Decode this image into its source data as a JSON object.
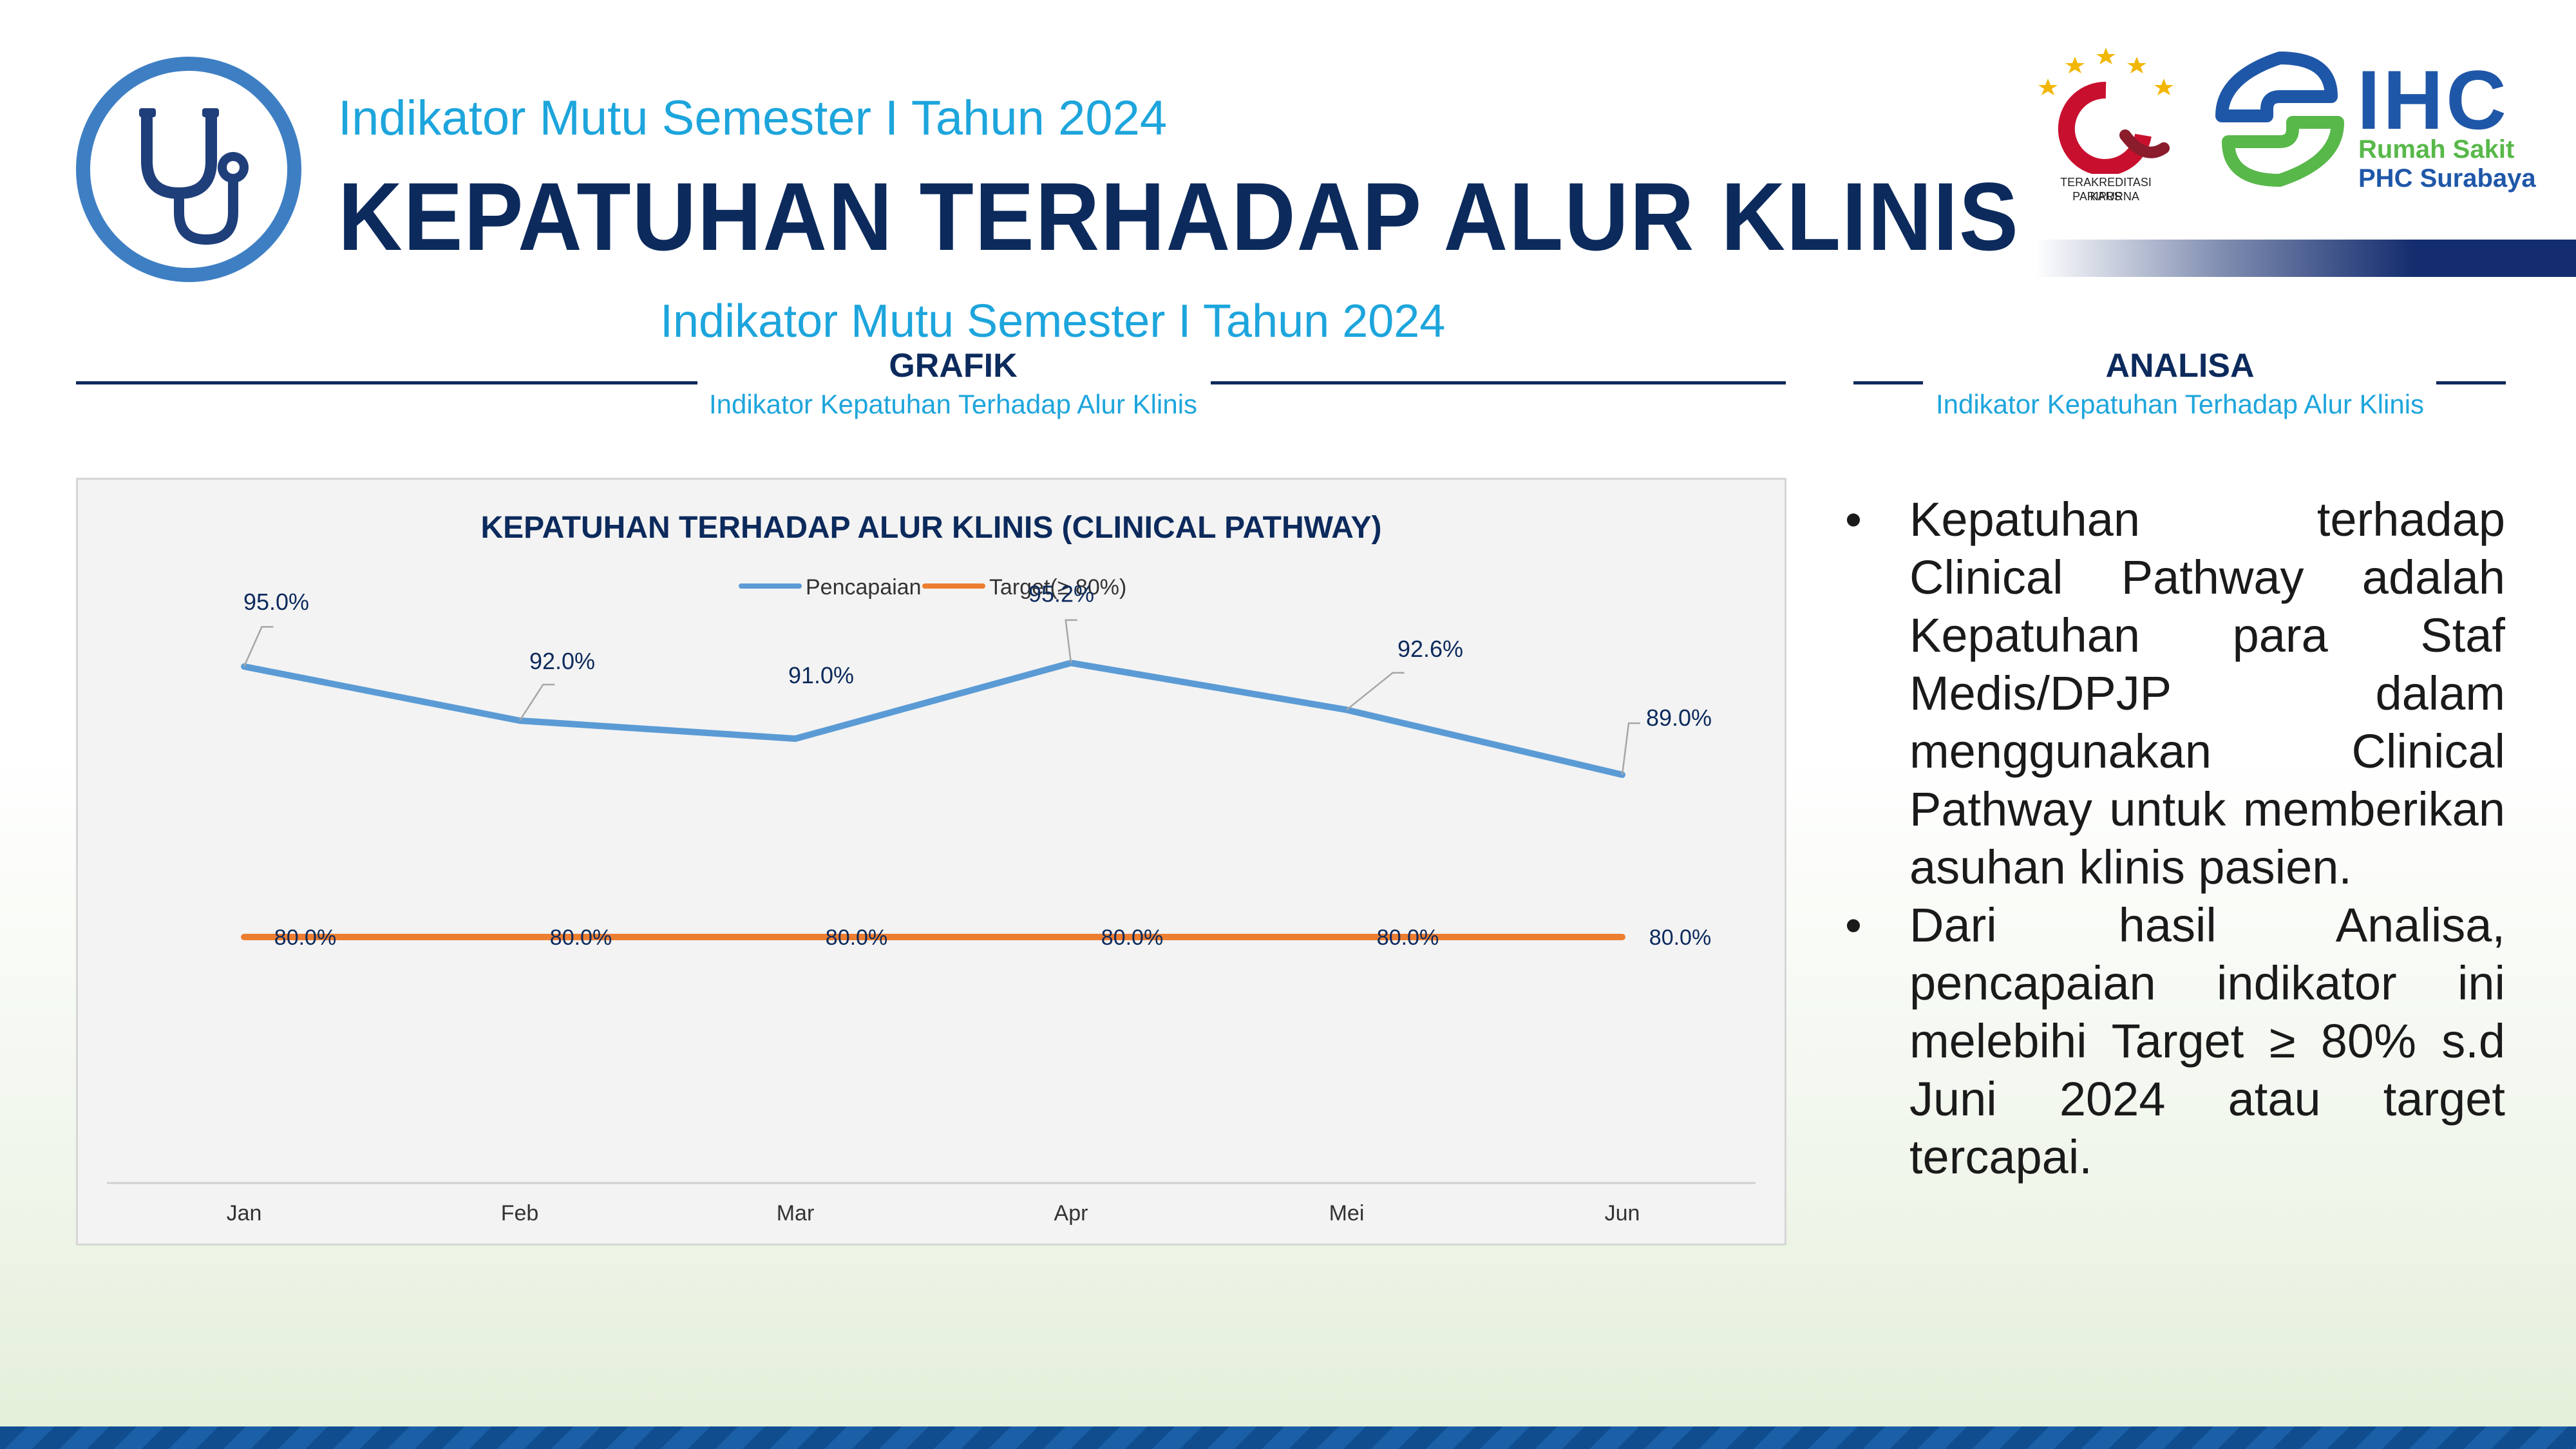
{
  "header": {
    "subtitle": "Indikator Mutu Semester I Tahun 2024",
    "title": "KEPATUHAN TERHADAP ALUR KLINIS"
  },
  "logos": {
    "kars_caption_1": "TERAKREDITASI PARIPURNA",
    "kars_caption_2": "KARS",
    "ihc_mark": "IHC",
    "ihc_line1": "Rumah Sakit",
    "ihc_line2": "PHC Surabaya"
  },
  "icons": [
    "stethoscope-icon",
    "kars-logo",
    "ihc-logo"
  ],
  "left_section": {
    "subtitle_top": "Indikator Mutu Semester I Tahun 2024",
    "heading": "GRAFIK",
    "subheading": "Indikator Kepatuhan Terhadap Alur Klinis"
  },
  "right_section": {
    "heading": "ANALISA",
    "subheading": "Indikator Kepatuhan Terhadap Alur Klinis",
    "bullets": [
      "Kepatuhan terhadap Clinical Pathway adalah Kepatuhan para Staf Medis/DPJP dalam menggunakan Clinical Pathway untuk memberikan asuhan klinis pasien.",
      "Dari hasil Analisa, pencapaian indikator ini melebihi Target ≥ 80% s.d Juni 2024 atau target tercapai."
    ]
  },
  "colors": {
    "navy": "#0c2a5c",
    "accent_blue": "#1da5dc",
    "series_pencapaian": "#5b9bd5",
    "series_target": "#ed7d31"
  },
  "chart_data": {
    "type": "line",
    "title": "KEPATUHAN TERHADAP ALUR KLINIS (CLINICAL PATHWAY)",
    "categories": [
      "Jan",
      "Feb",
      "Mar",
      "Apr",
      "Mei",
      "Jun"
    ],
    "series": [
      {
        "name": "Pencapaian",
        "values": [
          95.0,
          92.0,
          91.0,
          95.2,
          92.6,
          89.0
        ],
        "labels": [
          "95.0%",
          "92.0%",
          "91.0%",
          "95.2%",
          "92.6%",
          "89.0%"
        ],
        "color": "#5b9bd5"
      },
      {
        "name": "Target(≥ 80%)",
        "values": [
          80.0,
          80.0,
          80.0,
          80.0,
          80.0,
          80.0
        ],
        "labels": [
          "80.0%",
          "80.0%",
          "80.0%",
          "80.0%",
          "80.0%",
          "80.0%"
        ],
        "color": "#ed7d31"
      }
    ],
    "ylim": [
      70,
      100
    ],
    "legend": "top-center",
    "grid": false,
    "xlabel": "",
    "ylabel": ""
  }
}
